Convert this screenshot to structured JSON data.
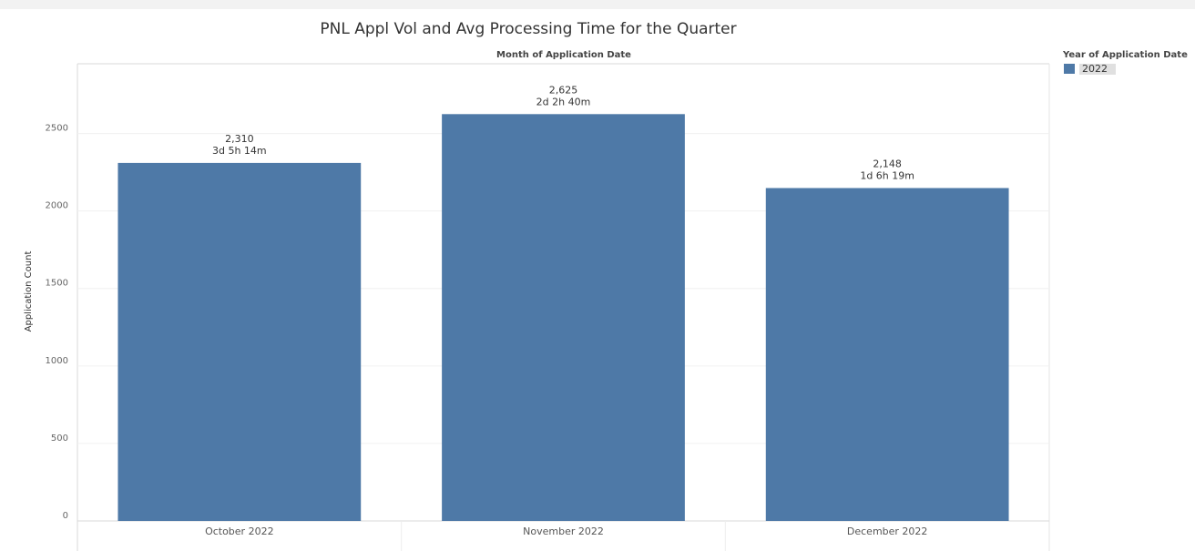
{
  "chart_data": {
    "type": "bar",
    "title": "PNL Appl Vol and Avg Processing Time for the Quarter",
    "x_header": "Month of Application Date",
    "y_label": "Application Count",
    "legend_title": "Year of Application Date",
    "categories": [
      "October 2022",
      "November 2022",
      "December 2022"
    ],
    "series": [
      {
        "name": "2022",
        "color": "#4e79a7",
        "values": [
          2310,
          2625,
          2148
        ],
        "value_labels": [
          "2,310",
          "2,625",
          "2,148"
        ],
        "processing_time_labels": [
          "3d 5h 14m",
          "2d 2h 40m",
          "1d 6h 19m"
        ]
      }
    ],
    "ylim": [
      0,
      2950
    ],
    "yticks": [
      0,
      500,
      1000,
      1500,
      2000,
      2500
    ],
    "grid": true
  }
}
